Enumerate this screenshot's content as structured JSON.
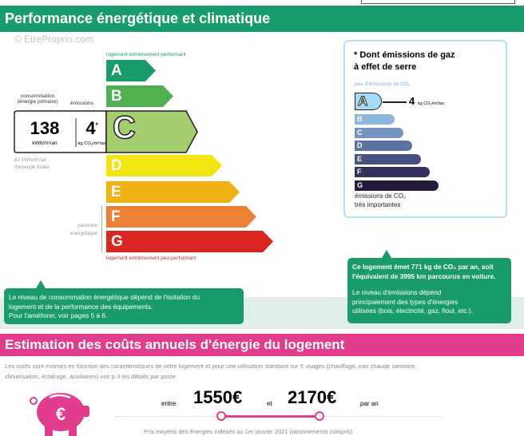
{
  "header": {
    "title": "Performance énergétique et climatique",
    "watermark": "© EtreProprio.com"
  },
  "dpe": {
    "top_label": "logement extrêmement performant",
    "bottom_label": "logement extrêmement peu performant",
    "passoire_label": [
      "passoire",
      "énergétique"
    ],
    "classes": [
      {
        "letter": "A",
        "color": "#1a9b6c"
      },
      {
        "letter": "B",
        "color": "#4fb04f"
      },
      {
        "letter": "C",
        "color": "#a3cd6e"
      },
      {
        "letter": "D",
        "color": "#f2e40f"
      },
      {
        "letter": "E",
        "color": "#f0b212"
      },
      {
        "letter": "F",
        "color": "#eb8134"
      },
      {
        "letter": "G",
        "color": "#da2621"
      }
    ],
    "current_class": "C",
    "consumption_label": [
      "consommation",
      "(énergie primaire)"
    ],
    "emissions_label": "émissions",
    "consumption_value": "138",
    "consumption_unit": "kWh/m²/an",
    "emissions_value": "4",
    "emissions_asterisk": "*",
    "emissions_unit": "kg CO₂/m²/an",
    "final_energy": [
      "82 kWh/m²/an",
      "d'énergie finale"
    ]
  },
  "ges": {
    "title": [
      "* Dont émissions de gaz",
      "à effet de serre"
    ],
    "top_label": "peu d'émissions de CO₂",
    "bottom_label": [
      "émissions de CO₂",
      "très importantes"
    ],
    "current_class": "A",
    "value": "4",
    "unit": "kg CO₂/m²/an",
    "classes": [
      {
        "letter": "A",
        "color": "#a4dbf6"
      },
      {
        "letter": "B",
        "color": "#8db6dc"
      },
      {
        "letter": "C",
        "color": "#7495c0"
      },
      {
        "letter": "D",
        "color": "#5c73a0"
      },
      {
        "letter": "E",
        "color": "#475080"
      },
      {
        "letter": "F",
        "color": "#332f5e"
      },
      {
        "letter": "G",
        "color": "#231a3d"
      }
    ]
  },
  "bubble_left": [
    "Le niveau de consommation énergétique dépend de l'isolation du",
    "logement et de la performance des équipements.",
    "Pour l'améliorer, voir pages 5 à 6."
  ],
  "bubble_right": {
    "bold": [
      "Ce logement émet 771 kg de CO₂ par an, soit",
      "l'équivalent de 3995 km parcourus en voiture."
    ],
    "text": [
      "Le niveau d'émissions dépend",
      "principalement des types d'énergies",
      "utilisées (bois, électricité, gaz, fioul, etc.)."
    ]
  },
  "costs": {
    "title": "Estimation des coûts annuels d'énergie du logement",
    "desc": [
      "Les coûts sont estimés en fonction des caractéristiques de votre logement et pour une utilisation standard sur 5 usages (chauffage, eau chaude sanitaire,",
      "climatisation, éclairage, auxiliaires) voir p.3 les détails par poste."
    ],
    "between": "entre",
    "min": "1550€",
    "and": "et",
    "max": "2170€",
    "per_year": "par an",
    "footnote": "Prix moyens des énergies indexés au 1er janvier 2021 (abonnements compris)",
    "accent": "#e23c8c"
  }
}
